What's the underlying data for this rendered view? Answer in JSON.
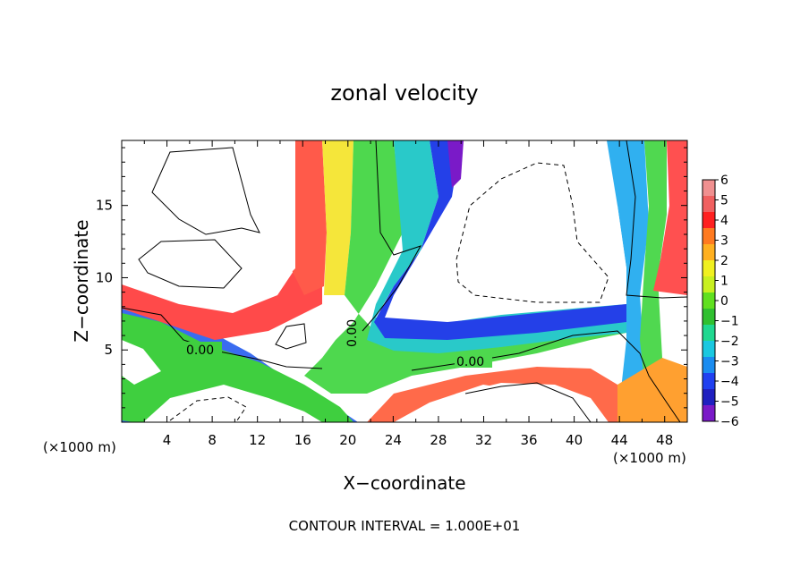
{
  "chart_data": {
    "type": "heatmap",
    "title": "zonal velocity",
    "xlabel": "X−coordinate",
    "ylabel": "Z−coordinate",
    "x_unit_left": "(×1000 m)",
    "x_unit_right": "(×1000 m)",
    "x_ticks": [
      "4",
      "8",
      "12",
      "16",
      "20",
      "24",
      "28",
      "32",
      "36",
      "40",
      "44",
      "48"
    ],
    "y_ticks": [
      "5",
      "10",
      "15"
    ],
    "xlim": [
      0,
      50
    ],
    "ylim": [
      0,
      19.5
    ],
    "colorbar": {
      "ticks": [
        "6",
        "5",
        "4",
        "3",
        "2",
        "1",
        "0",
        "−1",
        "−2",
        "−3",
        "−4",
        "−5",
        "−6"
      ],
      "range": [
        -6,
        6
      ]
    },
    "contour_labels": [
      "0.00",
      "0.00",
      "0.00"
    ],
    "footer": "CONTOUR INTERVAL = 1.000E+01"
  }
}
